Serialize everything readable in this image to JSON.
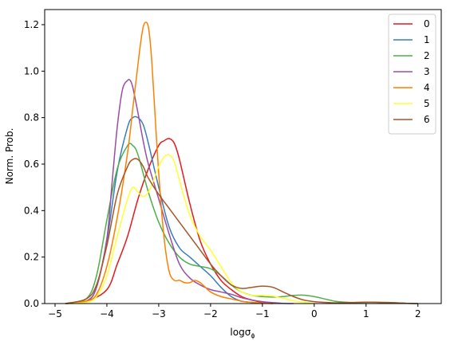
{
  "chart_data": {
    "type": "line",
    "xlabel": "logσ",
    "xlabel_subscript": "ϕ",
    "ylabel": "Norm. Prob.",
    "xlim": [
      -5.2,
      2.45
    ],
    "ylim": [
      0,
      1.265
    ],
    "xticks": [
      -5,
      -4,
      -3,
      -2,
      -1,
      0,
      1,
      2
    ],
    "xtick_labels": [
      "−5",
      "−4",
      "−3",
      "−2",
      "−1",
      "0",
      "1",
      "2"
    ],
    "yticks": [
      0.0,
      0.2,
      0.4,
      0.6,
      0.8,
      1.0,
      1.2
    ],
    "ytick_labels": [
      "0.0",
      "0.2",
      "0.4",
      "0.6",
      "0.8",
      "1.0",
      "1.2"
    ],
    "grid": false,
    "legend_position": "top-right",
    "series": [
      {
        "name": "0",
        "color": "#e41a1c",
        "x": [
          -4.8,
          -4.4,
          -4.0,
          -3.8,
          -3.6,
          -3.4,
          -3.2,
          -3.0,
          -2.9,
          -2.8,
          -2.7,
          -2.6,
          -2.4,
          -2.2,
          -2.0,
          -1.8,
          -1.6,
          -1.4,
          -1.2,
          -1.0,
          -0.8
        ],
        "y": [
          0.0,
          0.01,
          0.06,
          0.17,
          0.29,
          0.45,
          0.58,
          0.68,
          0.7,
          0.71,
          0.69,
          0.62,
          0.43,
          0.27,
          0.17,
          0.1,
          0.06,
          0.03,
          0.015,
          0.005,
          0.0
        ]
      },
      {
        "name": "1",
        "color": "#377eb8",
        "x": [
          -4.8,
          -4.4,
          -4.2,
          -4.0,
          -3.8,
          -3.6,
          -3.5,
          -3.4,
          -3.3,
          -3.2,
          -3.0,
          -2.8,
          -2.6,
          -2.4,
          -2.2,
          -2.0,
          -1.8,
          -1.6,
          -1.4,
          -1.2,
          -1.0
        ],
        "y": [
          0.0,
          0.01,
          0.07,
          0.27,
          0.57,
          0.76,
          0.8,
          0.8,
          0.77,
          0.69,
          0.5,
          0.33,
          0.24,
          0.2,
          0.16,
          0.12,
          0.07,
          0.03,
          0.01,
          0.005,
          0.0
        ]
      },
      {
        "name": "2",
        "color": "#4daf4a",
        "x": [
          -4.8,
          -4.4,
          -4.2,
          -4.0,
          -3.8,
          -3.6,
          -3.5,
          -3.4,
          -3.2,
          -3.0,
          -2.8,
          -2.6,
          -2.4,
          -2.2,
          -2.0,
          -1.8,
          -1.6,
          -1.4,
          -1.2,
          -1.0,
          -0.8,
          -0.6,
          -0.4,
          -0.2,
          0.0,
          0.2,
          0.4,
          0.6,
          0.8,
          1.0,
          1.2,
          1.4,
          1.6,
          1.8,
          2.0
        ],
        "y": [
          0.0,
          0.02,
          0.12,
          0.36,
          0.58,
          0.68,
          0.68,
          0.64,
          0.48,
          0.35,
          0.26,
          0.2,
          0.17,
          0.16,
          0.15,
          0.12,
          0.08,
          0.05,
          0.035,
          0.03,
          0.028,
          0.03,
          0.035,
          0.036,
          0.03,
          0.02,
          0.01,
          0.006,
          0.004,
          0.005,
          0.006,
          0.005,
          0.003,
          0.001,
          0.0
        ]
      },
      {
        "name": "3",
        "color": "#984ea3",
        "x": [
          -4.8,
          -4.4,
          -4.2,
          -4.0,
          -3.9,
          -3.8,
          -3.7,
          -3.6,
          -3.55,
          -3.5,
          -3.4,
          -3.3,
          -3.2,
          -3.0,
          -2.8,
          -2.6,
          -2.4,
          -2.2,
          -2.0,
          -1.8,
          -1.6,
          -1.4,
          -1.2,
          -1.0,
          -0.8,
          -0.6,
          -0.4
        ],
        "y": [
          0.0,
          0.01,
          0.07,
          0.28,
          0.52,
          0.76,
          0.92,
          0.96,
          0.96,
          0.93,
          0.82,
          0.7,
          0.6,
          0.45,
          0.3,
          0.17,
          0.11,
          0.08,
          0.06,
          0.05,
          0.04,
          0.025,
          0.015,
          0.008,
          0.004,
          0.001,
          0.0
        ]
      },
      {
        "name": "4",
        "color": "#ff7f00",
        "x": [
          -4.8,
          -4.4,
          -4.2,
          -4.0,
          -3.8,
          -3.6,
          -3.5,
          -3.4,
          -3.35,
          -3.3,
          -3.25,
          -3.2,
          -3.15,
          -3.1,
          -3.0,
          -2.9,
          -2.8,
          -2.7,
          -2.6,
          -2.5,
          -2.4,
          -2.3,
          -2.2,
          -2.1,
          -2.0,
          -1.8,
          -1.6,
          -1.4,
          -1.2,
          -1.0,
          -0.8
        ],
        "y": [
          0.0,
          0.01,
          0.04,
          0.16,
          0.37,
          0.65,
          0.84,
          1.03,
          1.12,
          1.19,
          1.21,
          1.19,
          1.09,
          0.92,
          0.56,
          0.29,
          0.14,
          0.1,
          0.1,
          0.09,
          0.09,
          0.1,
          0.09,
          0.07,
          0.05,
          0.03,
          0.02,
          0.01,
          0.005,
          0.002,
          0.0
        ]
      },
      {
        "name": "5",
        "color": "#ffff33",
        "x": [
          -4.8,
          -4.4,
          -4.2,
          -4.0,
          -3.8,
          -3.6,
          -3.5,
          -3.4,
          -3.3,
          -3.2,
          -3.1,
          -3.0,
          -2.9,
          -2.8,
          -2.7,
          -2.6,
          -2.4,
          -2.2,
          -2.0,
          -1.8,
          -1.6,
          -1.4,
          -1.2,
          -1.0,
          -0.8,
          -0.6,
          -0.4,
          -0.2,
          0.0
        ],
        "y": [
          0.0,
          0.005,
          0.03,
          0.12,
          0.29,
          0.45,
          0.5,
          0.48,
          0.46,
          0.48,
          0.53,
          0.59,
          0.63,
          0.64,
          0.61,
          0.53,
          0.38,
          0.29,
          0.23,
          0.16,
          0.09,
          0.05,
          0.035,
          0.035,
          0.032,
          0.022,
          0.012,
          0.005,
          0.0
        ]
      },
      {
        "name": "6",
        "color": "#a65628",
        "x": [
          -4.8,
          -4.4,
          -4.2,
          -4.0,
          -3.8,
          -3.6,
          -3.5,
          -3.4,
          -3.3,
          -3.2,
          -3.0,
          -2.8,
          -2.6,
          -2.4,
          -2.2,
          -2.0,
          -1.8,
          -1.6,
          -1.4,
          -1.2,
          -1.0,
          -0.8,
          -0.6,
          -0.4,
          -0.2,
          0.0,
          0.2,
          0.4,
          0.6,
          0.8,
          1.0,
          1.2,
          1.4,
          1.6,
          1.8,
          2.0
        ],
        "y": [
          0.0,
          0.02,
          0.08,
          0.25,
          0.47,
          0.59,
          0.62,
          0.62,
          0.59,
          0.54,
          0.47,
          0.41,
          0.35,
          0.29,
          0.23,
          0.17,
          0.12,
          0.08,
          0.065,
          0.07,
          0.075,
          0.07,
          0.05,
          0.03,
          0.015,
          0.008,
          0.005,
          0.003,
          0.004,
          0.005,
          0.006,
          0.005,
          0.004,
          0.003,
          0.001,
          0.0
        ]
      }
    ]
  }
}
